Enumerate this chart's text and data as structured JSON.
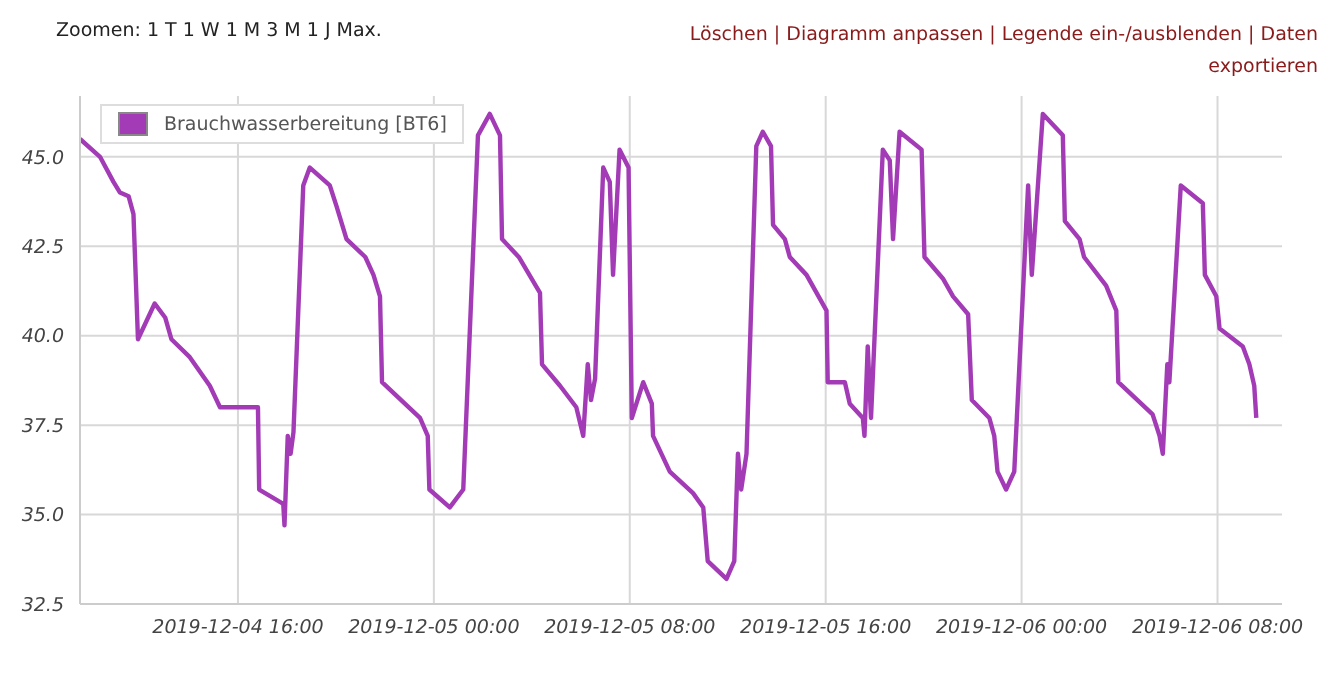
{
  "chart_data": {
    "type": "line",
    "annotations": [
      "Zoomen: 1 T 1 W 1 M 3 M 1 J Max.",
      "Löschen | Diagramm anpassen | Legende ein-/ausblenden | Daten exportieren"
    ],
    "x": [
      "2019-12-04T09:33",
      "2019-12-04T10:22",
      "2019-12-04T10:55",
      "2019-12-04T11:11",
      "2019-12-04T11:32",
      "2019-12-04T11:44",
      "2019-12-04T11:55",
      "2019-12-04T12:36",
      "2019-12-04T13:02",
      "2019-12-04T13:17",
      "2019-12-04T14:02",
      "2019-12-04T14:51",
      "2019-12-04T15:16",
      "2019-12-04T16:49",
      "2019-12-04T16:52",
      "2019-12-04T17:51",
      "2019-12-04T17:54",
      "2019-12-04T18:02",
      "2019-12-04T18:09",
      "2019-12-04T18:16",
      "2019-12-04T18:40",
      "2019-12-04T18:56",
      "2019-12-04T19:45",
      "2019-12-04T20:02",
      "2019-12-04T20:26",
      "2019-12-04T21:12",
      "2019-12-04T21:32",
      "2019-12-04T21:48",
      "2019-12-04T21:53",
      "2019-12-04T23:26",
      "2019-12-04T23:45",
      "2019-12-04T23:49",
      "2019-12-05T00:39",
      "2019-12-05T01:12",
      "2019-12-05T01:48",
      "2019-12-05T02:17",
      "2019-12-05T02:42",
      "2019-12-05T02:47",
      "2019-12-05T03:28",
      "2019-12-05T04:20",
      "2019-12-05T04:25",
      "2019-12-05T05:09",
      "2019-12-05T05:49",
      "2019-12-05T06:06",
      "2019-12-05T06:17",
      "2019-12-05T06:25",
      "2019-12-05T06:35",
      "2019-12-05T06:55",
      "2019-12-05T07:11",
      "2019-12-05T07:19",
      "2019-12-05T07:35",
      "2019-12-05T07:57",
      "2019-12-05T08:05",
      "2019-12-05T08:33",
      "2019-12-05T08:54",
      "2019-12-05T08:57",
      "2019-12-05T09:38",
      "2019-12-05T10:35",
      "2019-12-05T11:00",
      "2019-12-05T11:11",
      "2019-12-05T11:57",
      "2019-12-05T12:16",
      "2019-12-05T12:25",
      "2019-12-05T12:33",
      "2019-12-05T12:46",
      "2019-12-05T13:10",
      "2019-12-05T13:26",
      "2019-12-05T13:46",
      "2019-12-05T13:51",
      "2019-12-05T14:20",
      "2019-12-05T14:32",
      "2019-12-05T15:13",
      "2019-12-05T16:02",
      "2019-12-05T16:05",
      "2019-12-05T16:47",
      "2019-12-05T16:59",
      "2019-12-05T17:31",
      "2019-12-05T17:35",
      "2019-12-05T17:43",
      "2019-12-05T17:51",
      "2019-12-05T18:20",
      "2019-12-05T18:37",
      "2019-12-05T18:45",
      "2019-12-05T19:01",
      "2019-12-05T19:55",
      "2019-12-05T20:02",
      "2019-12-05T20:47",
      "2019-12-05T21:12",
      "2019-12-05T21:49",
      "2019-12-05T21:58",
      "2019-12-05T22:41",
      "2019-12-05T22:53",
      "2019-12-05T23:01",
      "2019-12-05T23:22",
      "2019-12-05T23:42",
      "2019-12-06T00:16",
      "2019-12-06T00:25",
      "2019-12-06T00:52",
      "2019-12-06T01:41",
      "2019-12-06T01:46",
      "2019-12-06T02:22",
      "2019-12-06T02:33",
      "2019-12-06T03:27",
      "2019-12-06T03:52",
      "2019-12-06T03:57",
      "2019-12-06T05:21",
      "2019-12-06T05:38",
      "2019-12-06T05:46",
      "2019-12-06T05:57",
      "2019-12-06T06:02",
      "2019-12-06T06:30",
      "2019-12-06T07:24",
      "2019-12-06T07:29",
      "2019-12-06T07:57",
      "2019-12-06T08:05",
      "2019-12-06T09:02",
      "2019-12-06T09:18",
      "2019-12-06T09:30",
      "2019-12-06T09:35"
    ],
    "series": [
      {
        "name": "Brauchwasserbereitung [BT6]",
        "color": "#a23bb5",
        "values": [
          45.5,
          45.0,
          44.3,
          44.0,
          43.9,
          43.4,
          39.9,
          40.9,
          40.5,
          39.9,
          39.4,
          38.6,
          38.0,
          38.0,
          35.7,
          35.3,
          34.7,
          37.2,
          36.7,
          37.3,
          44.2,
          44.7,
          44.2,
          43.6,
          42.7,
          42.2,
          41.7,
          41.1,
          38.7,
          37.7,
          37.2,
          35.7,
          35.2,
          35.7,
          45.6,
          46.2,
          45.6,
          42.7,
          42.2,
          41.2,
          39.2,
          38.6,
          38.0,
          37.2,
          39.2,
          38.2,
          38.8,
          44.7,
          44.3,
          41.7,
          45.2,
          44.7,
          37.7,
          38.7,
          38.1,
          37.2,
          36.2,
          35.6,
          35.2,
          33.7,
          33.2,
          33.7,
          36.7,
          35.7,
          36.7,
          45.3,
          45.7,
          45.3,
          43.1,
          42.7,
          42.2,
          41.7,
          40.7,
          38.7,
          38.7,
          38.1,
          37.7,
          37.2,
          39.7,
          37.7,
          45.2,
          44.9,
          42.7,
          45.7,
          45.2,
          42.2,
          41.6,
          41.1,
          40.6,
          38.2,
          37.7,
          37.2,
          36.2,
          35.7,
          36.2,
          44.2,
          41.7,
          46.2,
          45.6,
          43.2,
          42.7,
          42.2,
          41.4,
          40.7,
          38.7,
          37.8,
          37.2,
          36.7,
          39.2,
          38.7,
          44.2,
          43.7,
          41.7,
          41.1,
          40.2,
          39.7,
          39.2,
          38.6,
          37.7
        ]
      }
    ],
    "xlim": [
      "2019-12-04T09:33",
      "2019-12-06T10:38"
    ],
    "xticks": [
      {
        "value": "2019-12-04T16:00",
        "label": "2019-12-04 16:00"
      },
      {
        "value": "2019-12-05T00:00",
        "label": "2019-12-05 00:00"
      },
      {
        "value": "2019-12-05T08:00",
        "label": "2019-12-05 08:00"
      },
      {
        "value": "2019-12-05T16:00",
        "label": "2019-12-05 16:00"
      },
      {
        "value": "2019-12-06T00:00",
        "label": "2019-12-06 00:00"
      },
      {
        "value": "2019-12-06T08:00",
        "label": "2019-12-06 08:00"
      }
    ],
    "ylim": [
      32.5,
      46.7
    ],
    "yticks": [
      {
        "value": 32.5,
        "label": "32.5"
      },
      {
        "value": 35,
        "label": "35.0"
      },
      {
        "value": 37.5,
        "label": "37.5"
      },
      {
        "value": 40,
        "label": "40.0"
      },
      {
        "value": 42.5,
        "label": "42.5"
      },
      {
        "value": 45,
        "label": "45.0"
      }
    ],
    "grid": true,
    "legend": "top left"
  }
}
